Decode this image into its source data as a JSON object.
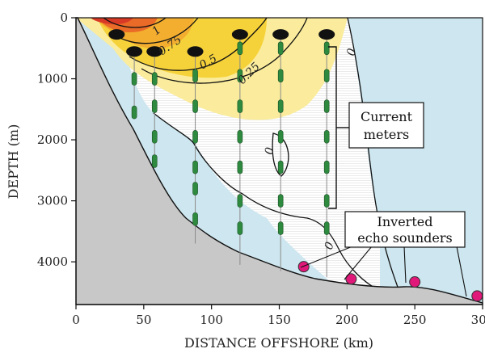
{
  "figure": {
    "x_axis": {
      "label": "DISTANCE OFFSHORE (km)",
      "ticks": [
        "0",
        "50",
        "100",
        "150",
        "200",
        "250",
        "300"
      ],
      "range_km": [
        0,
        300
      ]
    },
    "y_axis": {
      "label": "DEPTH (m)",
      "ticks": [
        "0",
        "1000",
        "2000",
        "3000",
        "4000"
      ],
      "range_m": [
        0,
        4700
      ]
    },
    "contour_labels": [
      "1",
      "0.75",
      "0.5",
      "0.25",
      "0",
      "0",
      "0"
    ],
    "callouts": {
      "current_meters_line1": "Current",
      "current_meters_line2": "meters",
      "ies_line1": "Inverted",
      "ies_line2": "echo sounders"
    },
    "colors": {
      "seafloor": "#c8c8c8",
      "water_background": "#cde6ef",
      "core_red": "#d93a26",
      "orange": "#f08a2c",
      "yellow": "#f6d23a",
      "pale_yellow": "#faec9c",
      "meter_green": "#2e8a3e",
      "ies_magenta": "#e0187a"
    }
  }
}
